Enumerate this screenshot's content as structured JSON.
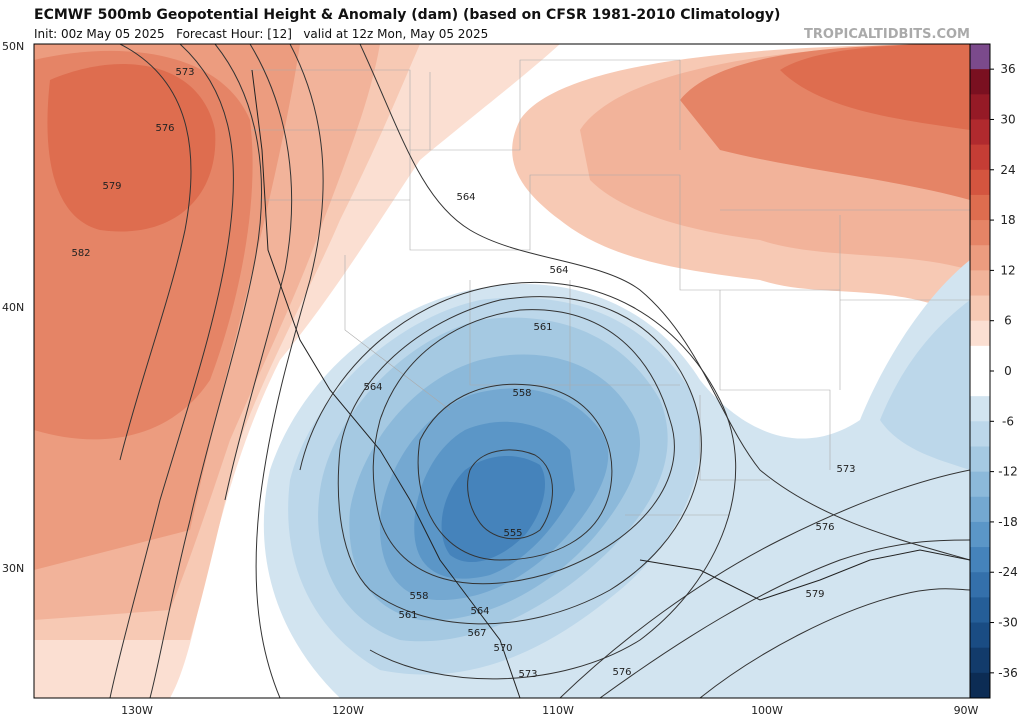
{
  "header": {
    "title": "ECMWF 500mb Geopotential Height & Anomaly (dam) (based on CFSR 1981-2010 Climatology)",
    "subtitle": "Init: 00z May 05 2025   Forecast Hour: [12]   valid at 12z Mon, May 05 2025",
    "watermark": "TROPICALTIDBITS.COM"
  },
  "map": {
    "lat_labels": [
      "50N",
      "40N",
      "30N"
    ],
    "lon_labels": [
      "130W",
      "120W",
      "110W",
      "100W",
      "90W"
    ],
    "contour_labels": [
      573,
      576,
      579,
      582,
      564,
      564,
      561,
      564,
      558,
      555,
      558,
      561,
      564,
      567,
      570,
      573,
      576,
      579,
      576,
      573
    ]
  },
  "colorbar": {
    "lim": [
      -39,
      39
    ],
    "ticks": [
      36,
      30,
      24,
      18,
      12,
      6,
      0,
      -6,
      -12,
      -18,
      -24,
      -30,
      -36
    ],
    "colors": [
      "#7b4a8c",
      "#7a1020",
      "#951a26",
      "#b02a2e",
      "#c53d35",
      "#d4553f",
      "#de6d4f",
      "#e58466",
      "#ec9c7f",
      "#f2b39a",
      "#f7c9b4",
      "#fbdfd2",
      "#ffffff",
      "#ffffff",
      "#d2e4f0",
      "#bcd7ea",
      "#a5c9e2",
      "#8cb9da",
      "#74a8d1",
      "#5b96c7",
      "#4583bb",
      "#3470ab",
      "#255e98",
      "#1a4c83",
      "#123b6b",
      "#0c2c54"
    ]
  }
}
